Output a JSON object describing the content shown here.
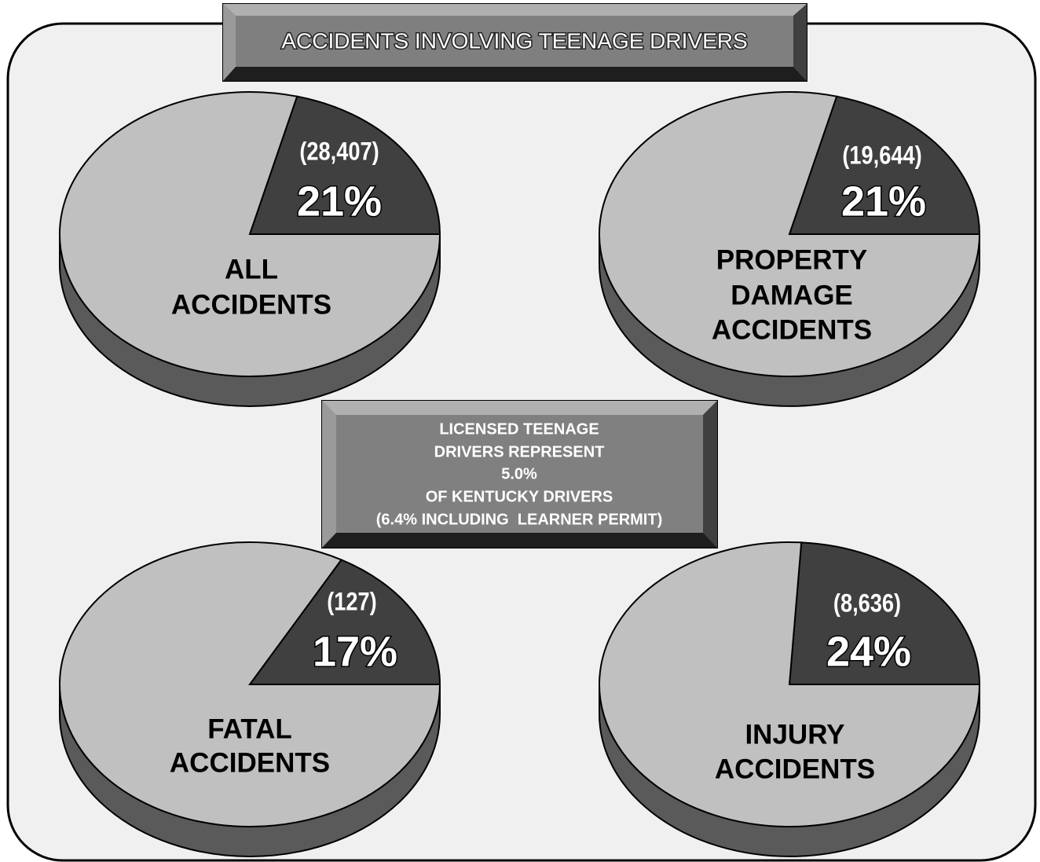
{
  "title": "ACCIDENTS INVOLVING TEENAGE DRIVERS",
  "note": [
    "LICENSED TEENAGE",
    "DRIVERS REPRESENT",
    "5.0%",
    "OF KENTUCKY DRIVERS",
    "(6.4% INCLUDING  LEARNER PERMIT)"
  ],
  "chart_data": [
    {
      "type": "pie",
      "title": [
        "ALL",
        "ACCIDENTS"
      ],
      "count_label": "(28,407)",
      "values": [
        21,
        79
      ],
      "value_labels": [
        "21%",
        null
      ],
      "colors": [
        "#404040",
        "#c0c0c0"
      ]
    },
    {
      "type": "pie",
      "title": [
        "PROPERTY",
        "DAMAGE",
        "ACCIDENTS"
      ],
      "count_label": "(19,644)",
      "values": [
        21,
        79
      ],
      "value_labels": [
        "21%",
        null
      ],
      "colors": [
        "#404040",
        "#c0c0c0"
      ]
    },
    {
      "type": "pie",
      "title": [
        "FATAL",
        "ACCIDENTS"
      ],
      "count_label": "(127)",
      "values": [
        17,
        83
      ],
      "value_labels": [
        "17%",
        null
      ],
      "colors": [
        "#404040",
        "#c0c0c0"
      ]
    },
    {
      "type": "pie",
      "title": [
        "INJURY",
        "ACCIDENTS"
      ],
      "count_label": "(8,636)",
      "values": [
        24,
        76
      ],
      "value_labels": [
        "24%",
        null
      ],
      "colors": [
        "#404040",
        "#c0c0c0"
      ]
    }
  ]
}
